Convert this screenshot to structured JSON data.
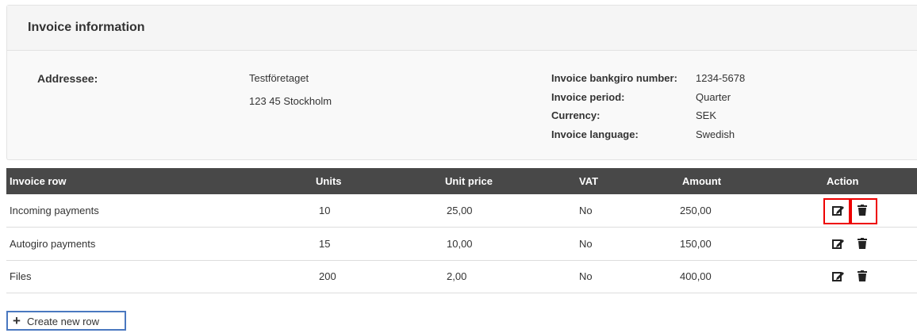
{
  "header": {
    "title": "Invoice information"
  },
  "addressee": {
    "label": "Addressee:",
    "lines": [
      "Testföretaget",
      "123 45 Stockholm"
    ]
  },
  "details": [
    {
      "label": "Invoice bankgiro number:",
      "value": "1234-5678"
    },
    {
      "label": "Invoice period:",
      "value": "Quarter"
    },
    {
      "label": "Currency:",
      "value": "SEK"
    },
    {
      "label": "Invoice language:",
      "value": "Swedish"
    }
  ],
  "table": {
    "columns": [
      "Invoice row",
      "Units",
      "Unit price",
      "VAT",
      "Amount",
      "Action"
    ],
    "rows": [
      [
        "Incoming payments",
        "10",
        "25,00",
        "No",
        "250,00"
      ],
      [
        "Autogiro payments",
        "15",
        "10,00",
        "No",
        "150,00"
      ],
      [
        "Files",
        "200",
        "2,00",
        "No",
        "400,00"
      ]
    ]
  },
  "button": {
    "label": "Create new row"
  }
}
